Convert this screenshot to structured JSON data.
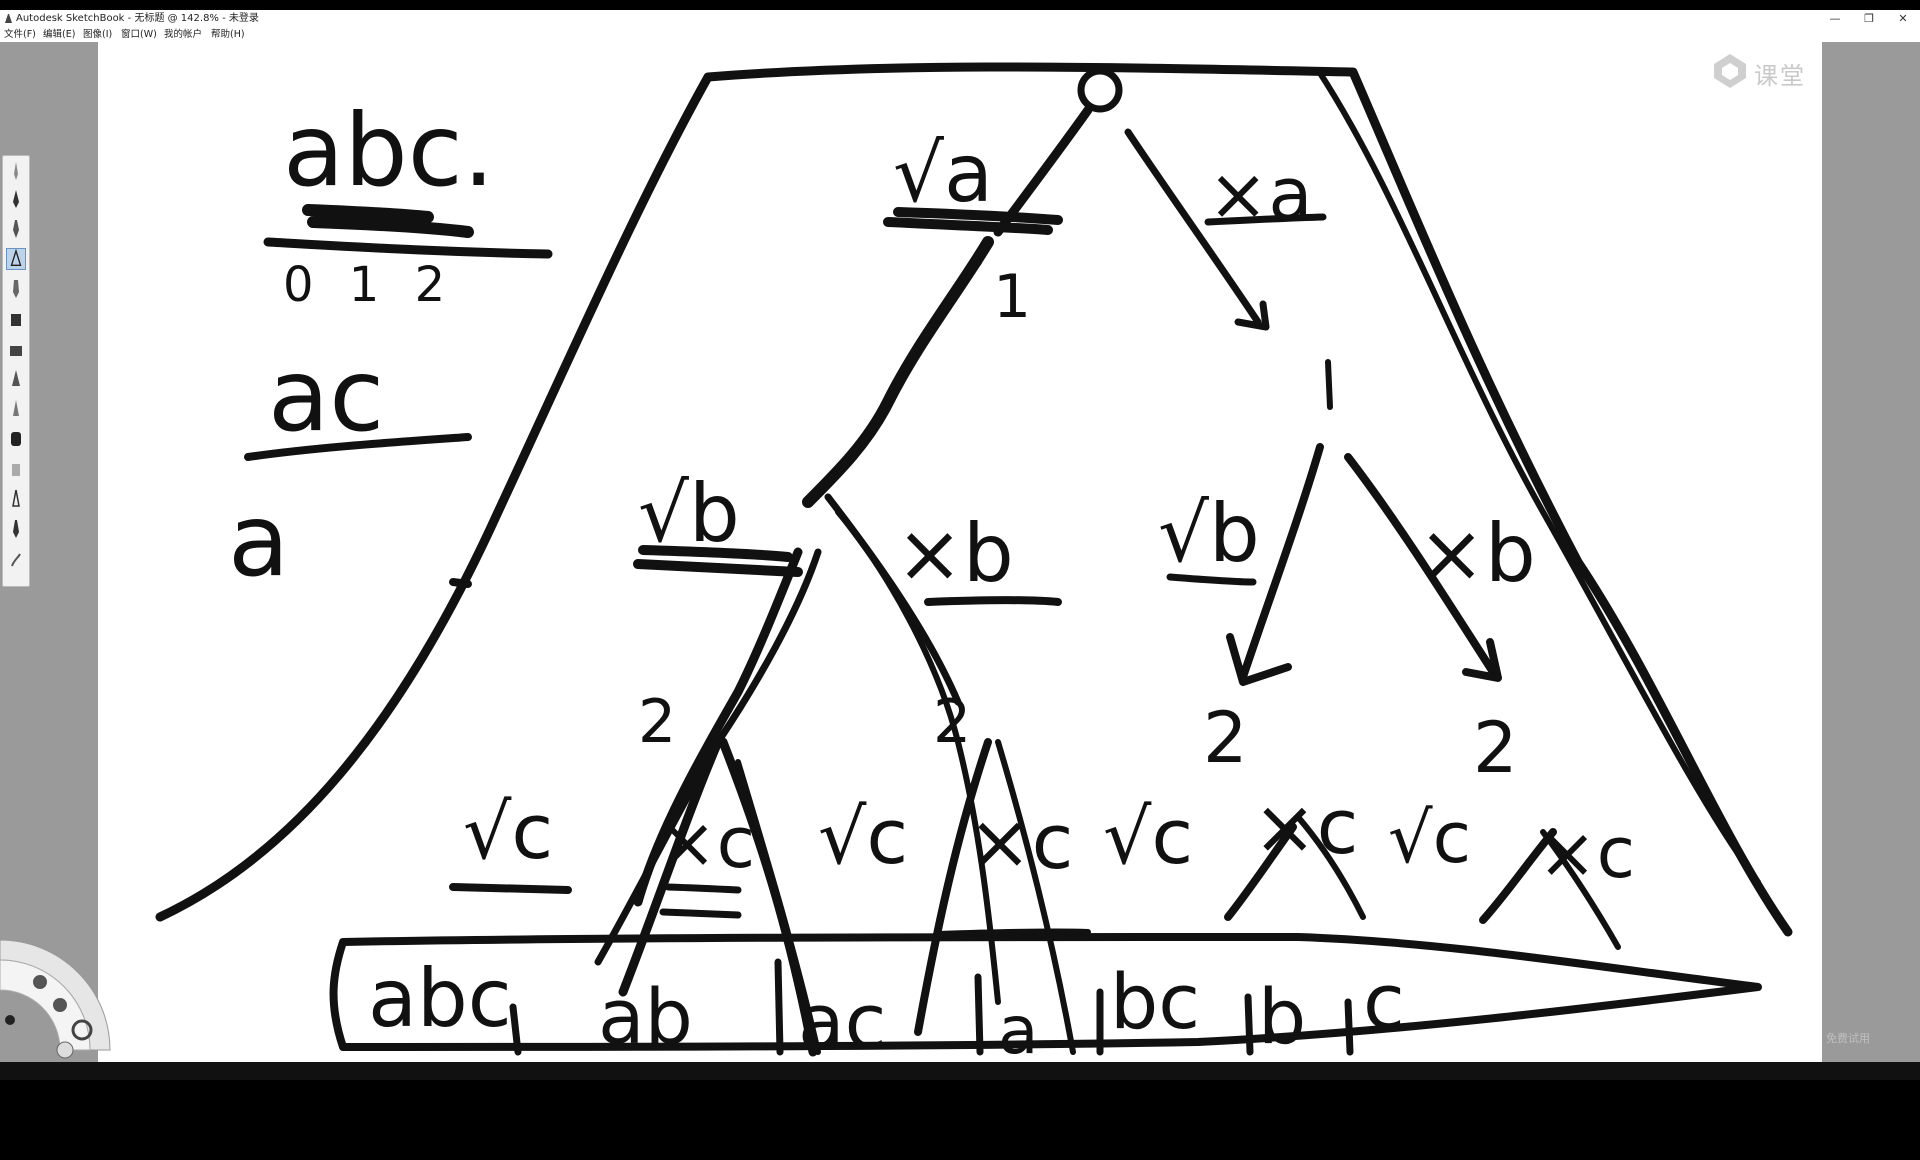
{
  "window": {
    "title": "Autodesk SketchBook - 无标题 @ 142.8% - 未登录",
    "minimize_icon": "minimize-icon",
    "maximize_icon": "restore-icon",
    "close_icon": "close-icon"
  },
  "menu": {
    "items": [
      "文件(F)",
      "编辑(E)",
      "图像(I)",
      "窗口(W)",
      "我的帐户",
      "帮助(H)"
    ]
  },
  "toolbar": {
    "tools": [
      "pen-icon",
      "pen-icon",
      "brush-icon",
      "pencil-icon",
      "marker-icon",
      "airbrush-icon",
      "paint-bucket-icon",
      "blend-icon",
      "ink-pen-icon",
      "chisel-icon",
      "stamp-icon",
      "eraser-icon",
      "brush-icon",
      "smudge-icon"
    ],
    "active_index": 3
  },
  "watermark": {
    "text": "课堂",
    "icon": "logo-icon"
  },
  "trial_text": "免费试用",
  "colors": {
    "canvas": "#ffffff",
    "ink": "#111111",
    "workspace": "#9a9a9a"
  },
  "sketch": {
    "labels": {
      "root_string": "abc.",
      "indices": "0 1 2",
      "sub_1": "ac",
      "sub_2": "a",
      "left_1": "√a",
      "right_1": "×a",
      "l2_vb": "√b",
      "l2_xb": "×b",
      "l2_vb2": "√b",
      "l2_xb2": "×b",
      "level_1": "1",
      "level_2": "2",
      "leaf_vc": "√c",
      "leaf_xc": "×c"
    },
    "results": [
      "abc",
      "ab",
      "ac",
      "a",
      "bc",
      "b",
      "c"
    ]
  }
}
